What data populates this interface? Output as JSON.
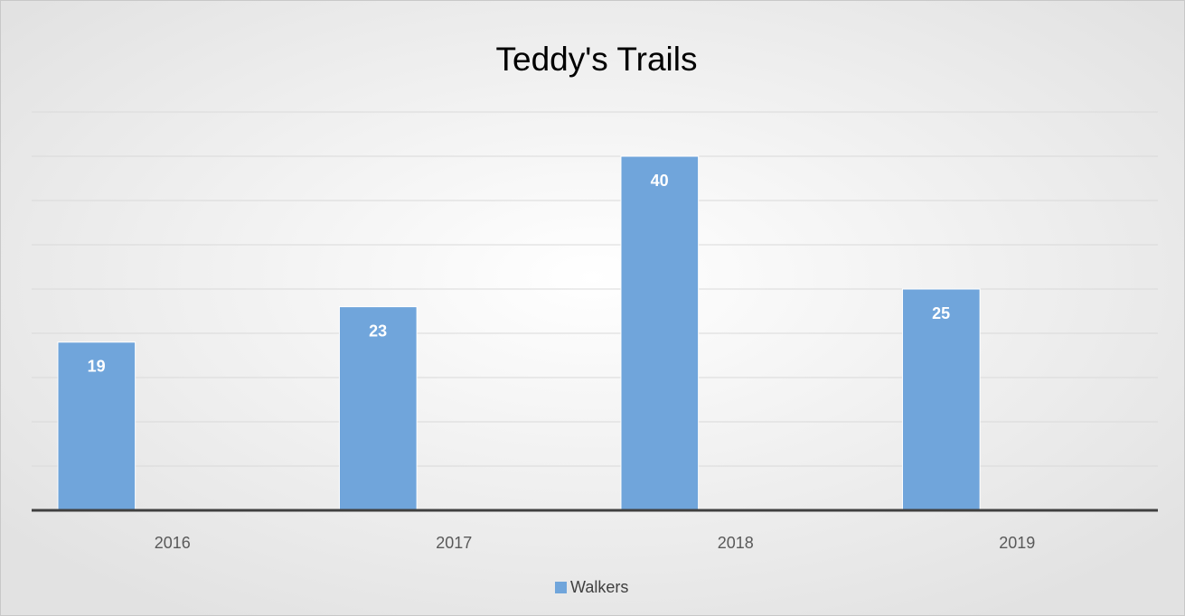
{
  "chart_data": {
    "type": "bar",
    "title": "Teddy's Trails",
    "categories": [
      "2016",
      "2017",
      "2018",
      "2019"
    ],
    "series": [
      {
        "name": "Walkers",
        "color": "#70a5db",
        "values": [
          19,
          23,
          40,
          25
        ]
      }
    ],
    "ylim": [
      0,
      45
    ],
    "yticks": [
      0,
      5,
      10,
      15,
      20,
      25,
      30,
      35,
      40,
      45
    ],
    "grid": true,
    "legend": "bottom"
  }
}
